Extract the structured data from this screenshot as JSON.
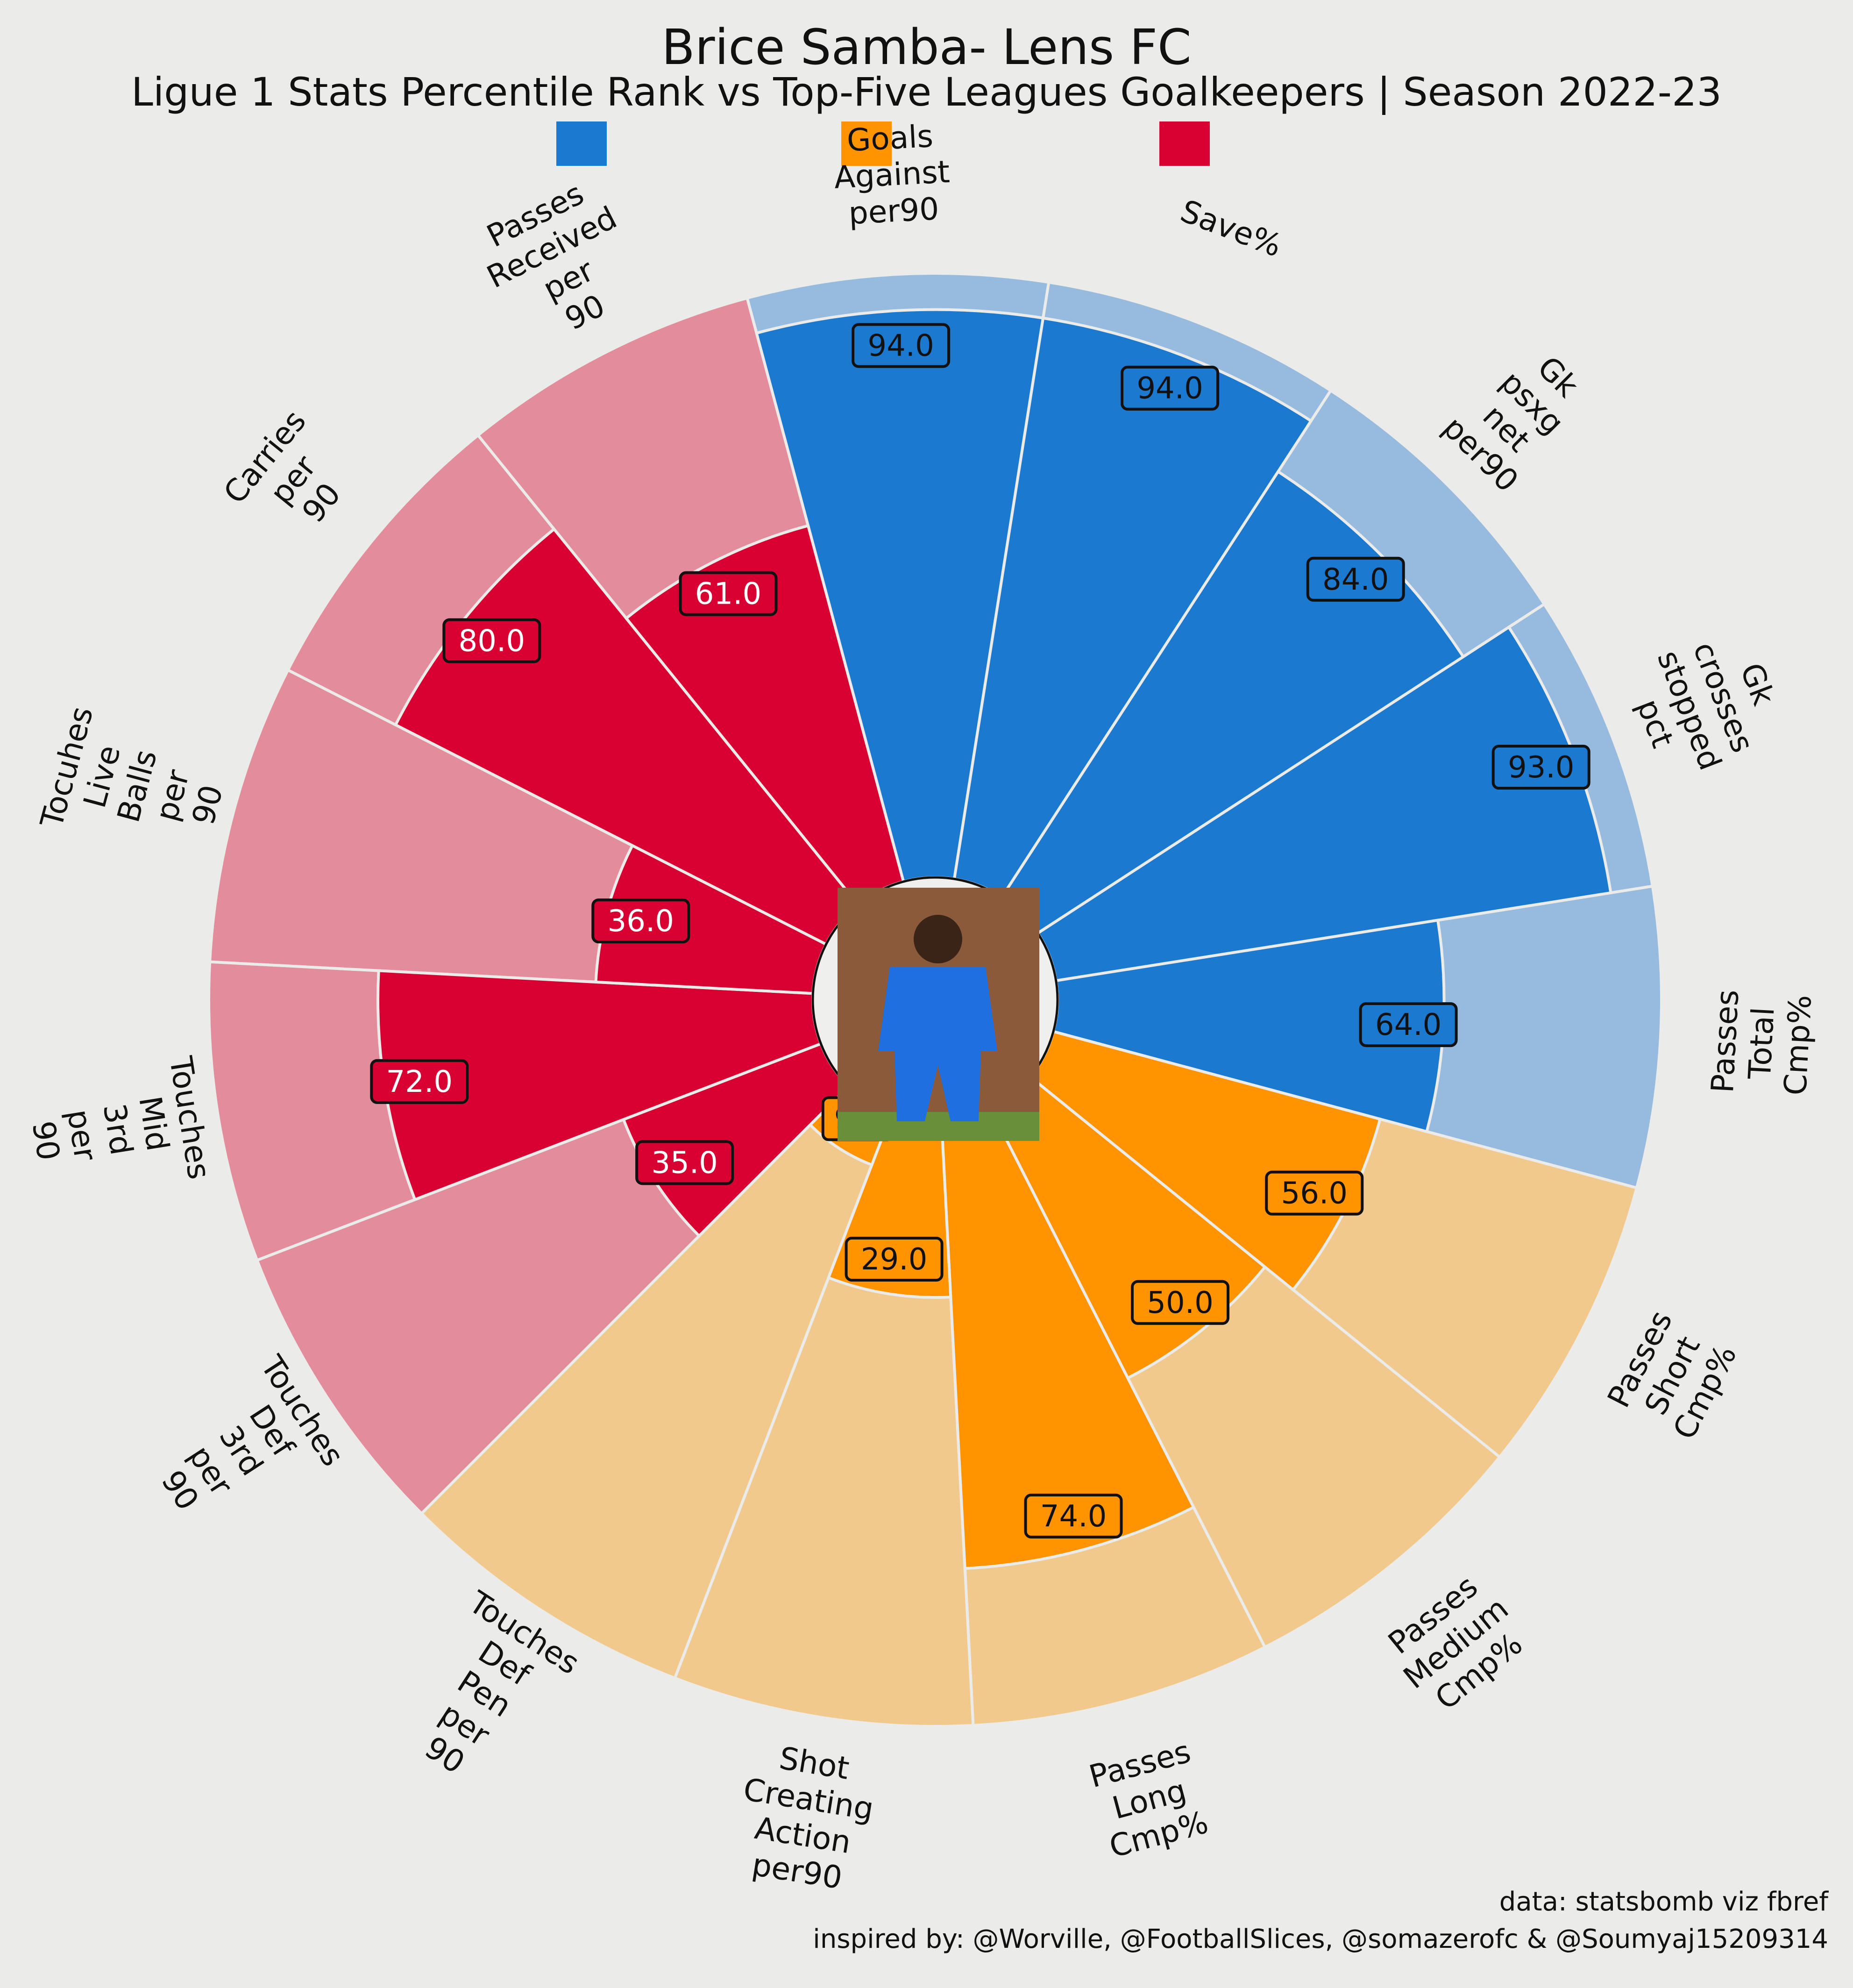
{
  "header": {
    "title": "Brice Samba- Lens FC",
    "subtitle": "Ligue 1 Stats Percentile Rank vs Top-Five Leagues Goalkeepers | Season 2022-23"
  },
  "footer": {
    "data_credit": "data: statsbomb viz fbref",
    "inspired_credit": "inspired by: @Worville, @FootballSlices, @somazerofc & @Soumyaj15209314"
  },
  "photo": {
    "description_icon": "player-photo-icon",
    "colors": {
      "shirt": "#1e6fe0",
      "crowd": "#8a5a3a",
      "pitch": "#6a8f3a"
    }
  },
  "colors": {
    "background": "#ebebe9",
    "goalkeeping": "#1c79d0",
    "goalkeeping_light": "#97bbde",
    "passing": "#ff9300",
    "passing_light": "#f1c98d",
    "possession": "#d70232",
    "possession_light": "#e38d9c"
  },
  "chart_data": {
    "type": "radar-bar",
    "title": "Brice Samba- Lens FC",
    "subtitle": "Ligue 1 Stats Percentile Rank vs Top-Five Leagues Goalkeepers | Season 2022-23",
    "ylim": [
      0,
      100
    ],
    "legend": [
      {
        "color": "#1c79d0",
        "label": ""
      },
      {
        "color": "#ff9300",
        "label": ""
      },
      {
        "color": "#d70232",
        "label": ""
      }
    ],
    "categories": [
      {
        "label": "Goals\nAgainst\nper90",
        "value": 94.0,
        "group": "goalkeeping"
      },
      {
        "label": "Save%",
        "value": 94.0,
        "group": "goalkeeping"
      },
      {
        "label": "Gk\npsxg\nnet\nper90",
        "value": 84.0,
        "group": "goalkeeping"
      },
      {
        "label": "Gk\ncrosses\nstopped\npct",
        "value": 93.0,
        "group": "goalkeeping"
      },
      {
        "label": "Passes\nTotal\nCmp%",
        "value": 64.0,
        "group": "goalkeeping"
      },
      {
        "label": "Passes\nShort\nCmp%",
        "value": 56.0,
        "group": "passing"
      },
      {
        "label": "Passes\nMedium\nCmp%",
        "value": 50.0,
        "group": "passing"
      },
      {
        "label": "Passes\nLong\nCmp%",
        "value": 74.0,
        "group": "passing"
      },
      {
        "label": "Shot\nCreating\nAction\nper90",
        "value": 29.0,
        "group": "passing"
      },
      {
        "label": "Touches\nDef\nPen\nper\n90",
        "value": 9.0,
        "group": "passing"
      },
      {
        "label": "Touches\nDef\n3rd\nper\n90",
        "value": 35.0,
        "group": "possession"
      },
      {
        "label": "Touches\nMid\n3rd\nper\n90",
        "value": 72.0,
        "group": "possession"
      },
      {
        "label": "Tocuhes\nLive\nBalls\nper\n90",
        "value": 36.0,
        "group": "possession"
      },
      {
        "label": "Carries\nper\n90",
        "value": 80.0,
        "group": "possession"
      },
      {
        "label": "Passes\nReceived\nper\n90",
        "value": 61.0,
        "group": "possession"
      }
    ]
  }
}
